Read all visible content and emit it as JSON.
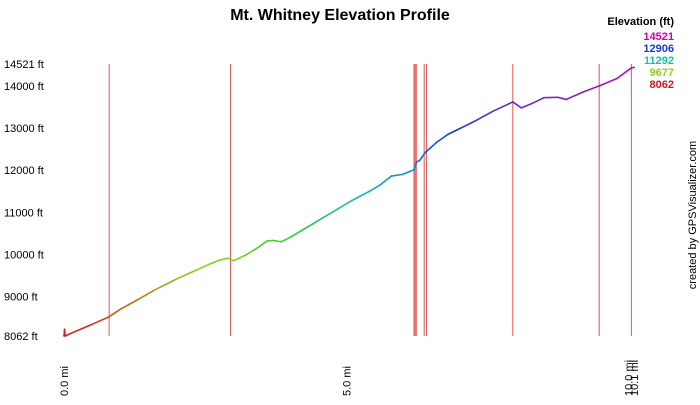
{
  "chart_data": {
    "type": "line",
    "title": "Mt. Whitney Elevation Profile",
    "legend_title": "Elevation (ft)",
    "legend_placement": "top-right",
    "legend_entries": [
      {
        "label": "14521",
        "color": "#cc00aa"
      },
      {
        "label": "12906",
        "color": "#1a3cc8"
      },
      {
        "label": "11292",
        "color": "#19c0a8"
      },
      {
        "label": "9677",
        "color": "#8cd21e"
      },
      {
        "label": "8062",
        "color": "#cc1a1a"
      }
    ],
    "credit": "created by GPSVisualizer.com",
    "xlabel": "",
    "ylabel": "",
    "xlim": [
      0,
      10.15
    ],
    "ylim": [
      8062,
      14521
    ],
    "x_ticks": [
      {
        "value": 0,
        "label": "0.0 mi"
      },
      {
        "value": 5,
        "label": "5.0 mi"
      },
      {
        "value": 10,
        "label": "10.0 mi"
      },
      {
        "value": 10.1,
        "label": "10.1 mi"
      }
    ],
    "y_ticks": [
      {
        "value": 8062,
        "label": "8062 ft"
      },
      {
        "value": 9000,
        "label": "9000 ft"
      },
      {
        "value": 10000,
        "label": "10000 ft"
      },
      {
        "value": 11000,
        "label": "11000 ft"
      },
      {
        "value": 12000,
        "label": "12000 ft"
      },
      {
        "value": 13000,
        "label": "13000 ft"
      },
      {
        "value": 14000,
        "label": "14000 ft"
      },
      {
        "value": 14521,
        "label": "14521 ft"
      }
    ],
    "grid": "vertical waypoint markers only",
    "waypoint_markers_mi": [
      0.8,
      2.95,
      6.2,
      6.22,
      6.24,
      6.38,
      6.42,
      7.95,
      9.48,
      10.05
    ],
    "series": [
      {
        "x": [
          0.0,
          0.01,
          0.02,
          0.2,
          0.5,
          0.8,
          1.0,
          1.3,
          1.6,
          2.0,
          2.3,
          2.6,
          2.75,
          2.9,
          3.0,
          3.2,
          3.4,
          3.6,
          3.7,
          3.85,
          4.0,
          4.2,
          4.4,
          4.6,
          4.85,
          5.1,
          5.4,
          5.6,
          5.8,
          6.0,
          6.2,
          6.25,
          6.3,
          6.4,
          6.6,
          6.8,
          7.0,
          7.3,
          7.6,
          7.95,
          8.1,
          8.3,
          8.5,
          8.75,
          8.9,
          9.2,
          9.5,
          9.8,
          9.95,
          10.05,
          10.1
        ],
        "y": [
          8062,
          8220,
          8062,
          8170,
          8340,
          8520,
          8700,
          8920,
          9150,
          9420,
          9600,
          9780,
          9860,
          9910,
          9850,
          9970,
          10130,
          10320,
          10330,
          10300,
          10400,
          10560,
          10720,
          10880,
          11080,
          11280,
          11490,
          11650,
          11860,
          11900,
          12010,
          12200,
          12230,
          12420,
          12660,
          12850,
          12980,
          13180,
          13400,
          13620,
          13480,
          13590,
          13720,
          13730,
          13680,
          13860,
          14010,
          14180,
          14330,
          14430,
          14440
        ]
      }
    ]
  }
}
